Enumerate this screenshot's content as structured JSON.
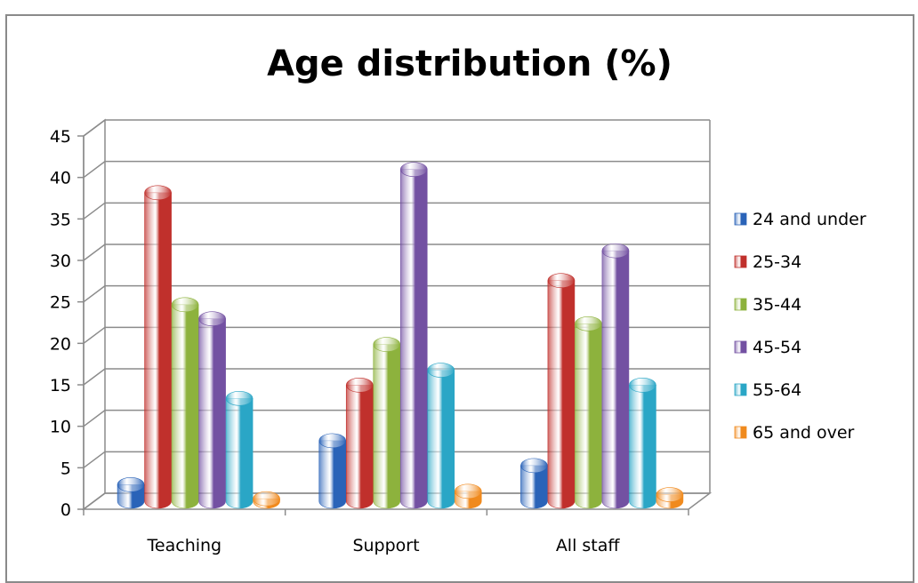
{
  "chart_data": {
    "type": "bar",
    "title": "Age distribution (%)",
    "xlabel": "",
    "ylabel": "",
    "ylim": [
      0,
      45
    ],
    "yticks": [
      0,
      5,
      10,
      15,
      20,
      25,
      30,
      35,
      40,
      45
    ],
    "grid": true,
    "legend_position": "right",
    "categories": [
      "Teaching",
      "Support",
      "All staff"
    ],
    "series": [
      {
        "name": "24 and under",
        "color": "#2a63b8",
        "values": [
          2.0,
          7.3,
          4.3
        ]
      },
      {
        "name": "25-34",
        "color": "#c0302c",
        "values": [
          37.2,
          14.0,
          26.6
        ]
      },
      {
        "name": "35-44",
        "color": "#8db23d",
        "values": [
          23.7,
          18.9,
          21.4
        ]
      },
      {
        "name": "45-54",
        "color": "#7351a2",
        "values": [
          22.0,
          40.0,
          30.2
        ]
      },
      {
        "name": "55-64",
        "color": "#2aa6c6",
        "values": [
          12.4,
          15.8,
          14.0
        ]
      },
      {
        "name": "65 and over",
        "color": "#f08a1e",
        "values": [
          0.3,
          1.2,
          0.8
        ]
      }
    ]
  }
}
